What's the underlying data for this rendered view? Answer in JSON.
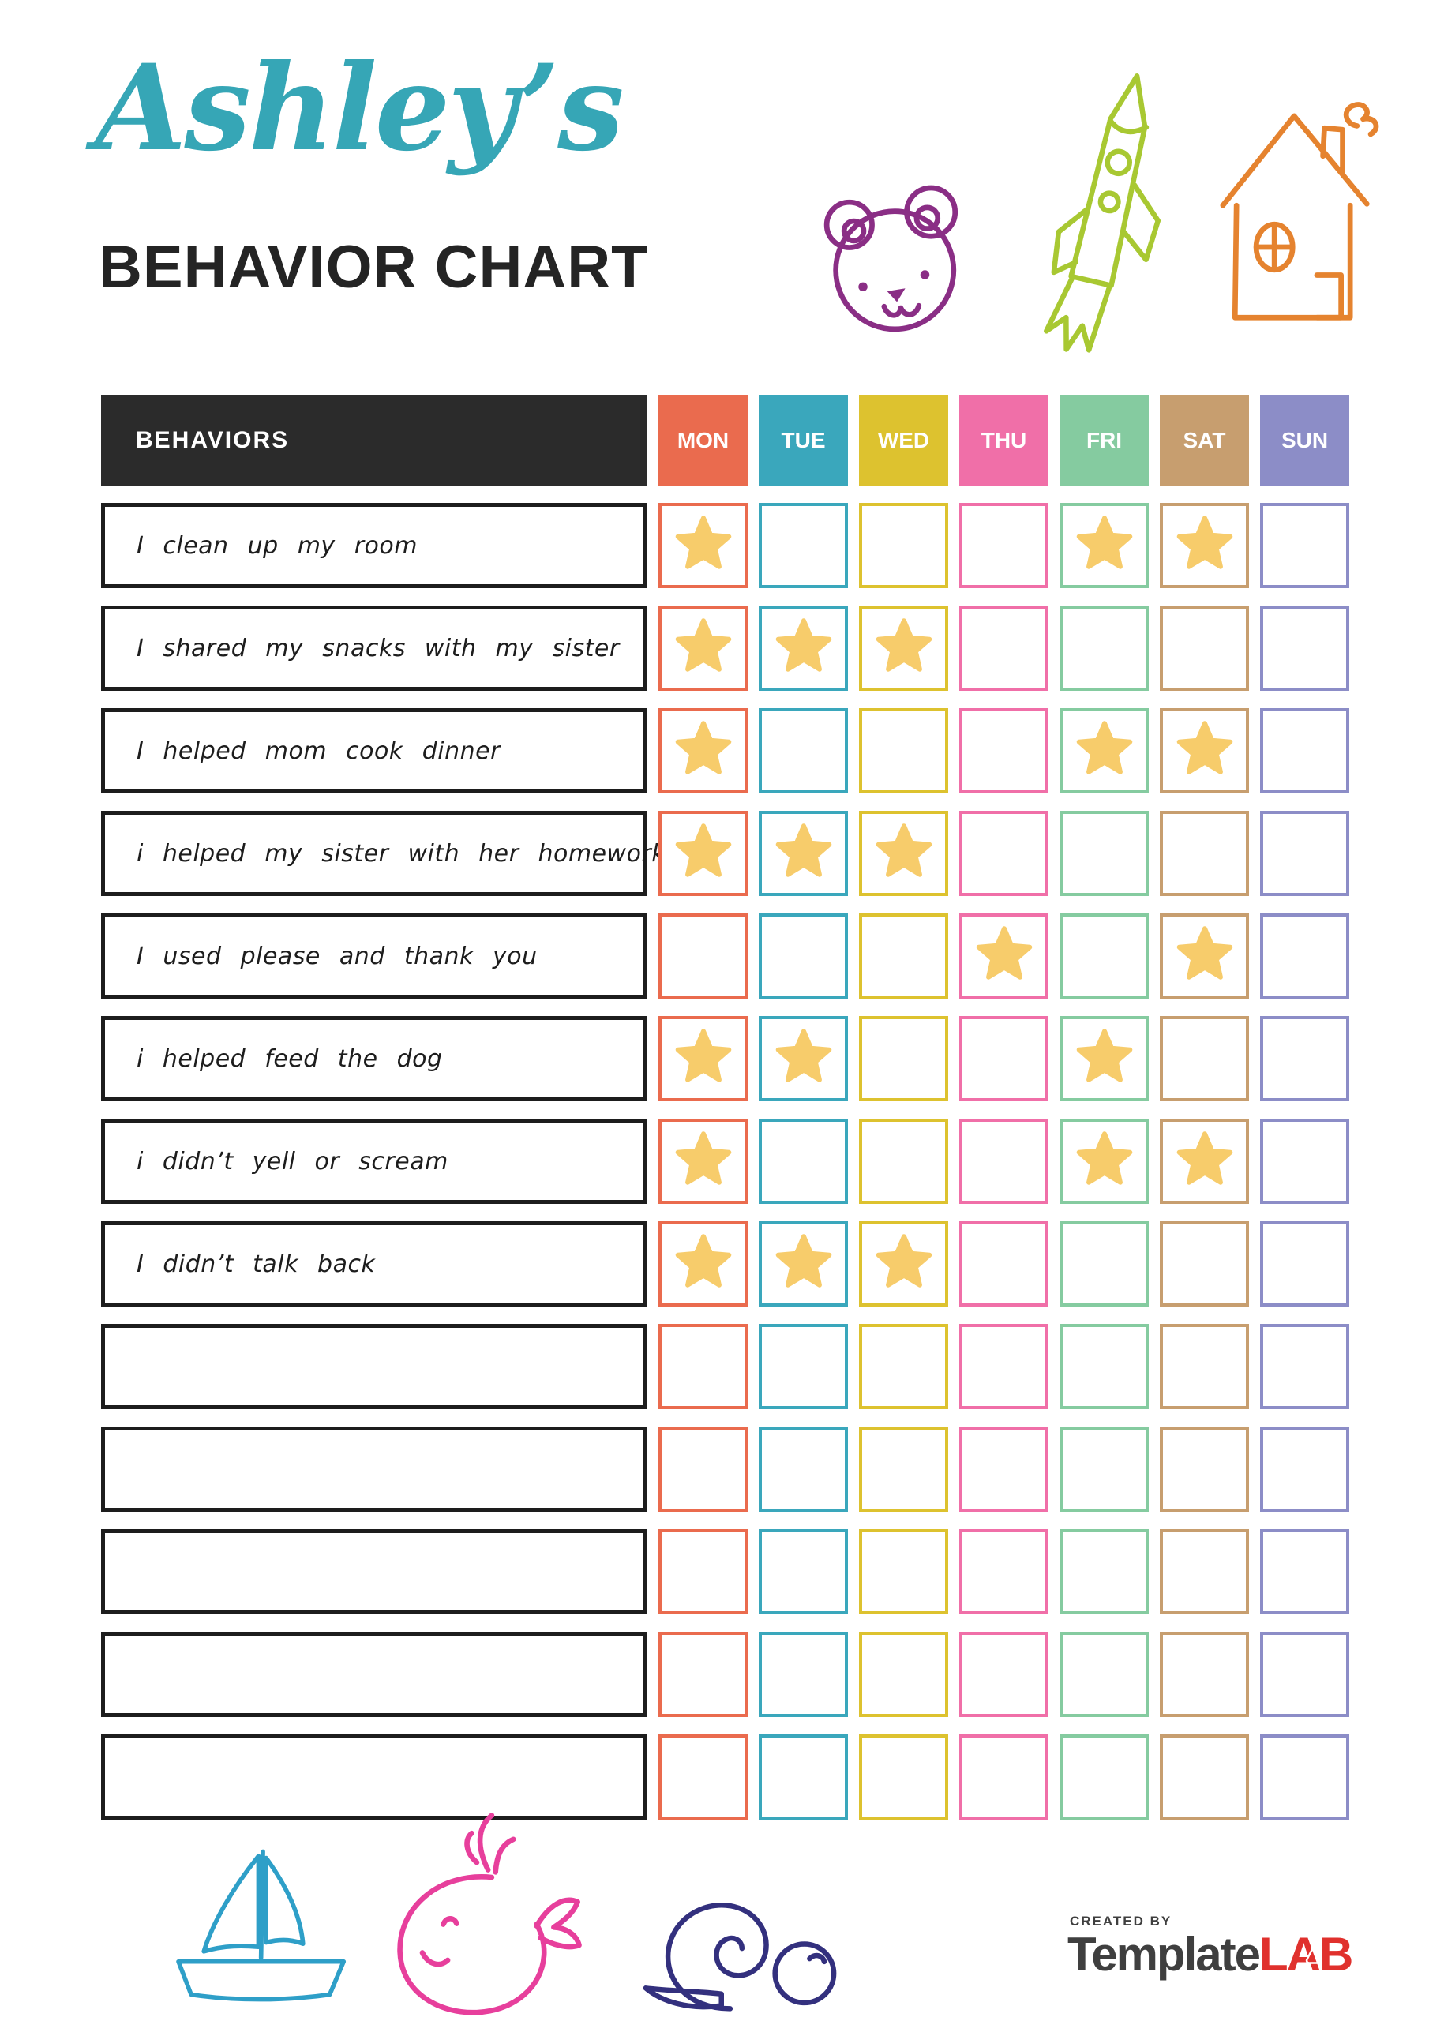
{
  "header": {
    "name": "Ashley’s",
    "chart_title": "BEHAVIOR CHART"
  },
  "colors": {
    "title_teal": "#36A6B6",
    "ink": "#242424",
    "table_header_bg": "#2B2B2B",
    "row_border": "#1D1D1D",
    "star": "#F7CC6B",
    "bear": "#8A2E85",
    "rocket": "#A8C832",
    "house": "#E5832F",
    "sailboat": "#2E9FC8",
    "whale": "#E73F9C",
    "snail": "#33307E",
    "logo_gray": "#3F3F3F",
    "logo_red": "#E0312D"
  },
  "table": {
    "behaviors_header": "BEHAVIORS",
    "days": [
      {
        "label": "MON",
        "color": "#EA6B4E"
      },
      {
        "label": "TUE",
        "color": "#3AA7BC"
      },
      {
        "label": "WED",
        "color": "#DDC22F"
      },
      {
        "label": "THU",
        "color": "#F06FA8"
      },
      {
        "label": "FRI",
        "color": "#85CBA0"
      },
      {
        "label": "SAT",
        "color": "#C79E6F"
      },
      {
        "label": "SUN",
        "color": "#8C8DC7"
      }
    ],
    "rows": [
      {
        "label": "I clean up my room",
        "stars": [
          1,
          0,
          0,
          0,
          1,
          1,
          0
        ]
      },
      {
        "label": "I shared my snacks with my sister",
        "stars": [
          1,
          1,
          1,
          0,
          0,
          0,
          0
        ]
      },
      {
        "label": "I helped mom cook dinner",
        "stars": [
          1,
          0,
          0,
          0,
          1,
          1,
          0
        ]
      },
      {
        "label": "i helped my sister with her homework",
        "stars": [
          1,
          1,
          1,
          0,
          0,
          0,
          0
        ]
      },
      {
        "label": "I used please and thank you",
        "stars": [
          0,
          0,
          0,
          1,
          0,
          1,
          0
        ]
      },
      {
        "label": "i helped feed the dog",
        "stars": [
          1,
          1,
          0,
          0,
          1,
          0,
          0
        ]
      },
      {
        "label": "i didn’t yell or scream",
        "stars": [
          1,
          0,
          0,
          0,
          1,
          1,
          0
        ]
      },
      {
        "label": "I didn’t talk back",
        "stars": [
          1,
          1,
          1,
          0,
          0,
          0,
          0
        ]
      },
      {
        "label": "",
        "stars": [
          0,
          0,
          0,
          0,
          0,
          0,
          0
        ]
      },
      {
        "label": "",
        "stars": [
          0,
          0,
          0,
          0,
          0,
          0,
          0
        ]
      },
      {
        "label": "",
        "stars": [
          0,
          0,
          0,
          0,
          0,
          0,
          0
        ]
      },
      {
        "label": "",
        "stars": [
          0,
          0,
          0,
          0,
          0,
          0,
          0
        ]
      },
      {
        "label": "",
        "stars": [
          0,
          0,
          0,
          0,
          0,
          0,
          0
        ]
      }
    ]
  },
  "footer": {
    "created_by": "CREATED BY",
    "brand_name": "Template",
    "brand_suffix": "LAB"
  }
}
